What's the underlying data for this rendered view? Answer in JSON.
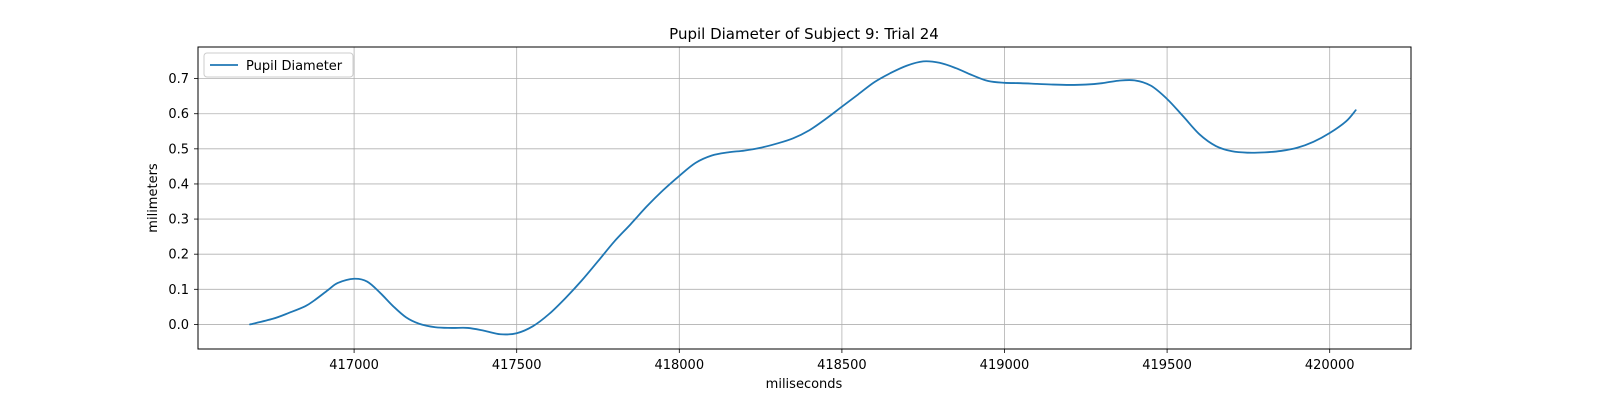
{
  "chart_data": {
    "type": "line",
    "title": "Pupil Diameter of Subject 9: Trial 24",
    "xlabel": "miliseconds",
    "ylabel": "milimeters",
    "xlim": [
      416520,
      420250
    ],
    "ylim": [
      -0.07,
      0.79
    ],
    "x_ticks": [
      417000,
      417500,
      418000,
      418500,
      419000,
      419500,
      420000
    ],
    "x_tick_labels": [
      "417000",
      "417500",
      "418000",
      "418500",
      "419000",
      "419500",
      "420000"
    ],
    "y_ticks": [
      0.0,
      0.1,
      0.2,
      0.3,
      0.4,
      0.5,
      0.6,
      0.7
    ],
    "y_tick_labels": [
      "0.0",
      "0.1",
      "0.2",
      "0.3",
      "0.4",
      "0.5",
      "0.6",
      "0.7"
    ],
    "grid": true,
    "legend_position": "top-left",
    "series": [
      {
        "name": "Pupil Diameter",
        "color": "#1f77b4",
        "x": [
          416680,
          416750,
          416800,
          416850,
          416880,
          416920,
          416950,
          417000,
          417040,
          417080,
          417120,
          417160,
          417200,
          417250,
          417300,
          417350,
          417400,
          417450,
          417500,
          417550,
          417600,
          417650,
          417700,
          417750,
          417800,
          417850,
          417900,
          417950,
          418000,
          418050,
          418100,
          418150,
          418200,
          418250,
          418300,
          418350,
          418400,
          418450,
          418500,
          418550,
          418600,
          418650,
          418700,
          418750,
          418800,
          418850,
          418900,
          418950,
          419000,
          419050,
          419100,
          419150,
          419200,
          419250,
          419300,
          419350,
          419400,
          419450,
          419500,
          419550,
          419600,
          419650,
          419700,
          419750,
          419800,
          419850,
          419900,
          419950,
          420000,
          420050,
          420080
        ],
        "y": [
          0.0,
          0.016,
          0.033,
          0.052,
          0.07,
          0.098,
          0.118,
          0.13,
          0.122,
          0.09,
          0.052,
          0.02,
          0.002,
          -0.008,
          -0.01,
          -0.01,
          -0.018,
          -0.028,
          -0.025,
          -0.005,
          0.03,
          0.075,
          0.125,
          0.18,
          0.236,
          0.285,
          0.336,
          0.382,
          0.423,
          0.46,
          0.481,
          0.49,
          0.495,
          0.503,
          0.515,
          0.53,
          0.553,
          0.585,
          0.62,
          0.655,
          0.69,
          0.716,
          0.737,
          0.749,
          0.745,
          0.73,
          0.71,
          0.693,
          0.688,
          0.687,
          0.685,
          0.683,
          0.682,
          0.683,
          0.687,
          0.694,
          0.695,
          0.68,
          0.642,
          0.592,
          0.541,
          0.508,
          0.493,
          0.489,
          0.49,
          0.494,
          0.503,
          0.52,
          0.545,
          0.578,
          0.61
        ]
      }
    ]
  }
}
